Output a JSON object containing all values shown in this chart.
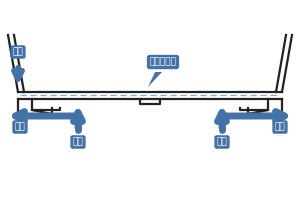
{
  "blue_color": "#4472a8",
  "bg_color": "#ffffff",
  "text_color": "#ffffff",
  "line_color": "#222222",
  "dashed_color": "#7ab0d8",
  "labels": {
    "water": "お水",
    "mesh": "メッシュ部",
    "drain_left": "排水",
    "drain_right": "排水",
    "suction_left": "吸気",
    "suction_right": "吸気"
  },
  "figsize": [
    3.0,
    2.0
  ],
  "dpi": 100
}
